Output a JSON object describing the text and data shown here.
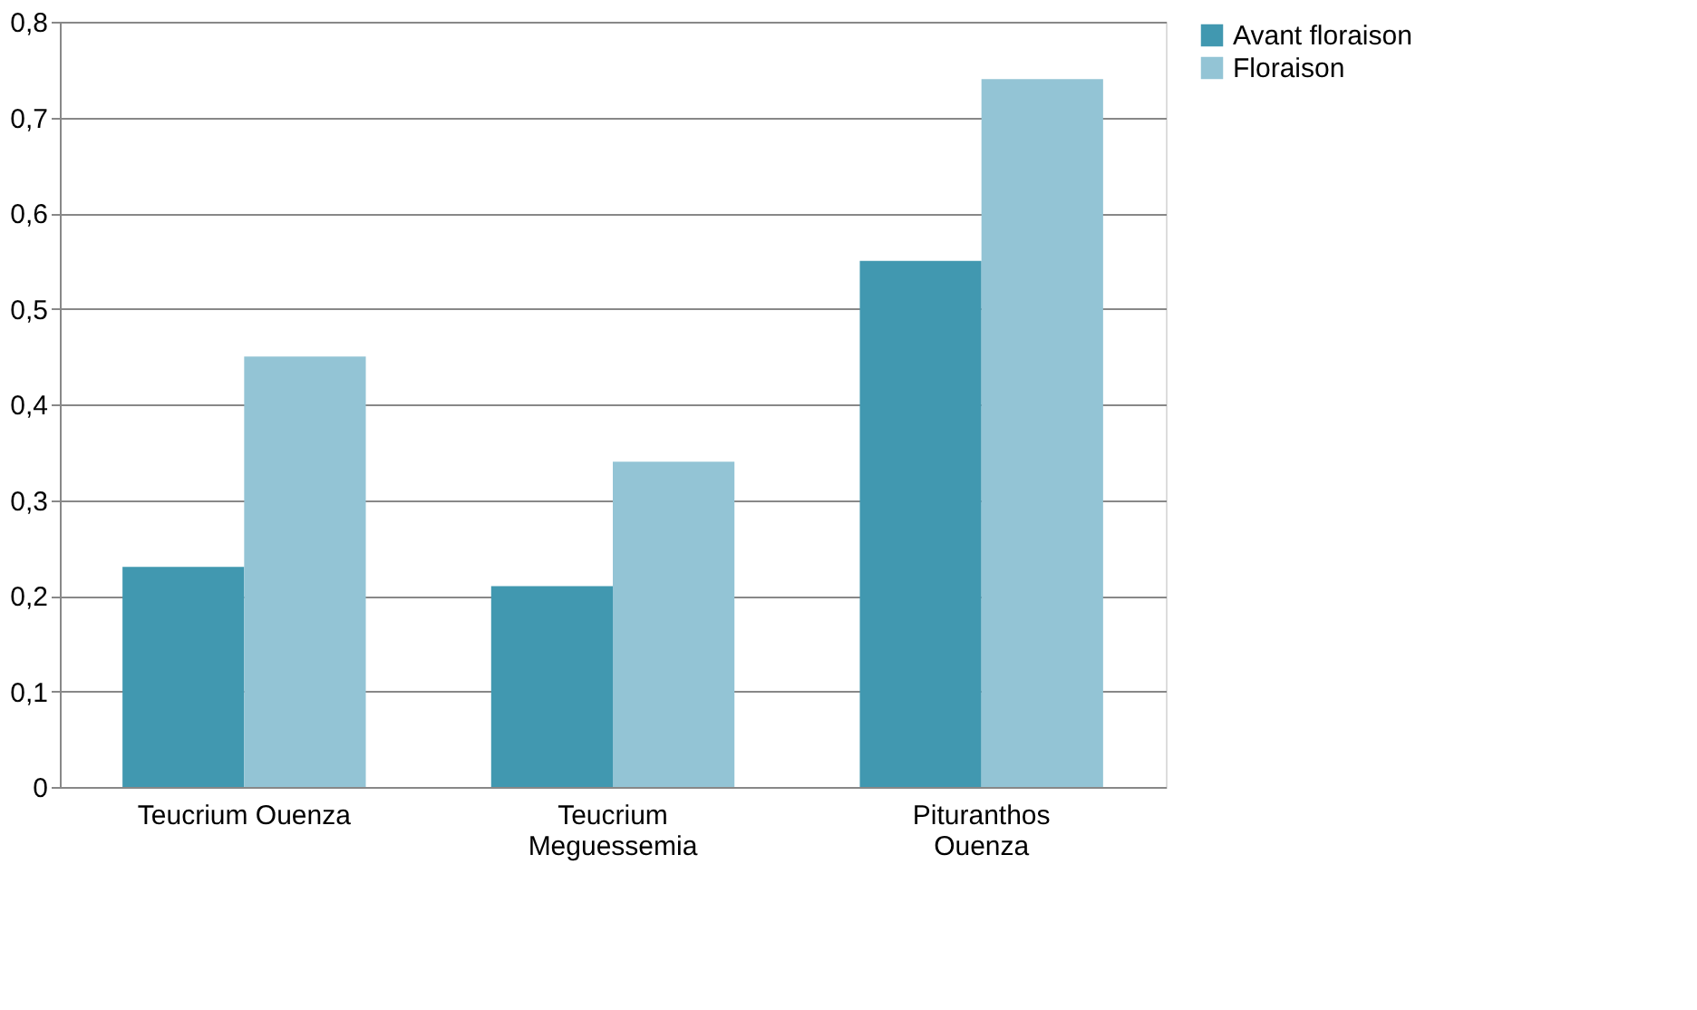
{
  "chart_data": {
    "type": "bar",
    "categories": [
      "Teucrium Ouenza",
      "Teucrium Meguessemia",
      "Pituranthos Ouenza"
    ],
    "series": [
      {
        "name": "Avant floraison",
        "color": "#4198b0",
        "values": [
          0.23,
          0.21,
          0.55
        ]
      },
      {
        "name": "Floraison",
        "color": "#93c4d5",
        "values": [
          0.45,
          0.34,
          0.74
        ]
      }
    ],
    "ylim": [
      0,
      0.8
    ],
    "yticks": [
      {
        "value": 0,
        "label": "0"
      },
      {
        "value": 0.1,
        "label": "0,1"
      },
      {
        "value": 0.2,
        "label": "0,2"
      },
      {
        "value": 0.3,
        "label": "0,3"
      },
      {
        "value": 0.4,
        "label": "0,4"
      },
      {
        "value": 0.5,
        "label": "0,5"
      },
      {
        "value": 0.6,
        "label": "0,6"
      },
      {
        "value": 0.7,
        "label": "0,7"
      },
      {
        "value": 0.8,
        "label": "0,8"
      }
    ],
    "grid": "y",
    "legend": "right"
  }
}
